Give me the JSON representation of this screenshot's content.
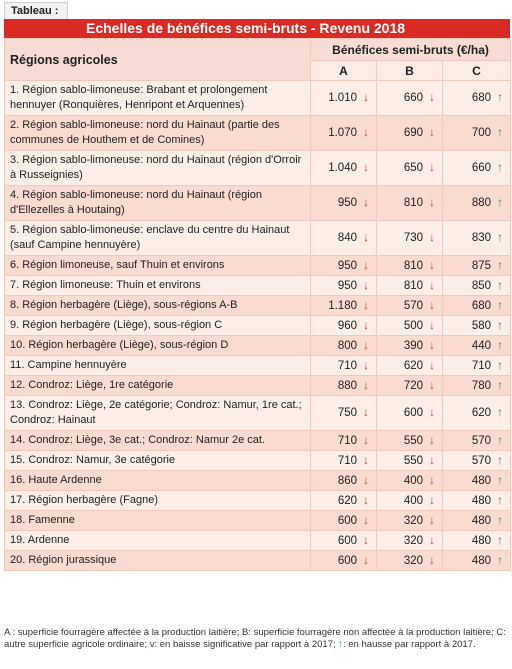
{
  "tab_label": "Tableau :",
  "title": "Echelles de bénéfices semi-bruts - Revenu 2018",
  "header": {
    "regions": "Régions agricoles",
    "group": "Bénéfices semi-bruts (€/ha)",
    "cols": [
      "A",
      "B",
      "C"
    ]
  },
  "rows": [
    {
      "region": "1. Région sablo-limoneuse: Brabant et prolongement hennuyer (Ronquières, Henripont et Arquennes)",
      "a": "1.010",
      "a_dir": "down",
      "b": "660",
      "b_dir": "down",
      "c": "680",
      "c_dir": "up"
    },
    {
      "region": "2. Région sablo-limoneuse: nord du Hainaut (partie des communes de Houthem et de Comines)",
      "a": "1.070",
      "a_dir": "down",
      "b": "690",
      "b_dir": "down",
      "c": "700",
      "c_dir": "up"
    },
    {
      "region": "3. Région sablo-limoneuse: nord du Hainaut (région d'Orroir à Russeignies)",
      "a": "1.040",
      "a_dir": "down",
      "b": "650",
      "b_dir": "down",
      "c": "660",
      "c_dir": "up"
    },
    {
      "region": "4. Région sablo-limoneuse: nord du Hainaut (région d'Ellezelles à Houtaing)",
      "a": "950",
      "a_dir": "down",
      "b": "810",
      "b_dir": "down",
      "c": "880",
      "c_dir": "up"
    },
    {
      "region": "5. Région sablo-limoneuse: enclave du centre du Hainaut (sauf Campine hennuyère)",
      "a": "840",
      "a_dir": "down",
      "b": "730",
      "b_dir": "down",
      "c": "830",
      "c_dir": "up"
    },
    {
      "region": "6. Région limoneuse, sauf Thuin et environs",
      "a": "950",
      "a_dir": "down",
      "b": "810",
      "b_dir": "down",
      "c": "875",
      "c_dir": "up"
    },
    {
      "region": "7. Région limoneuse: Thuin et environs",
      "a": "950",
      "a_dir": "down",
      "b": "810",
      "b_dir": "down",
      "c": "850",
      "c_dir": "up"
    },
    {
      "region": "8. Région herbagère (Liège), sous-régions A-B",
      "a": "1.180",
      "a_dir": "down",
      "b": "570",
      "b_dir": "down",
      "c": "680",
      "c_dir": "up"
    },
    {
      "region": "9. Région herbagère (Liège), sous-région C",
      "a": "960",
      "a_dir": "down",
      "b": "500",
      "b_dir": "down",
      "c": "580",
      "c_dir": "up"
    },
    {
      "region": "10. Région herbagère (Liège), sous-région D",
      "a": "800",
      "a_dir": "down",
      "b": "390",
      "b_dir": "down",
      "c": "440",
      "c_dir": "up"
    },
    {
      "region": "11. Campine hennuyère",
      "a": "710",
      "a_dir": "down",
      "b": "620",
      "b_dir": "down",
      "c": "710",
      "c_dir": "up"
    },
    {
      "region": "12. Condroz: Liège, 1re catégorie",
      "a": "880",
      "a_dir": "down",
      "b": "720",
      "b_dir": "down",
      "c": "780",
      "c_dir": "up"
    },
    {
      "region": "13. Condroz: Liège, 2e catégorie; Condroz: Namur, 1re cat.; Condroz: Hainaut",
      "a": "750",
      "a_dir": "down",
      "b": "600",
      "b_dir": "down",
      "c": "620",
      "c_dir": "up"
    },
    {
      "region": "14. Condroz: Liège, 3e cat.; Condroz: Namur 2e cat.",
      "a": "710",
      "a_dir": "down",
      "b": "550",
      "b_dir": "down",
      "c": "570",
      "c_dir": "up"
    },
    {
      "region": "15. Condroz: Namur, 3e catégorie",
      "a": "710",
      "a_dir": "down",
      "b": "550",
      "b_dir": "down",
      "c": "570",
      "c_dir": "up"
    },
    {
      "region": "16. Haute Ardenne",
      "a": "860",
      "a_dir": "down",
      "b": "400",
      "b_dir": "down",
      "c": "480",
      "c_dir": "up"
    },
    {
      "region": "17. Région herbagère (Fagne)",
      "a": "620",
      "a_dir": "down",
      "b": "400",
      "b_dir": "down",
      "c": "480",
      "c_dir": "up"
    },
    {
      "region": "18. Famenne",
      "a": "600",
      "a_dir": "down",
      "b": "320",
      "b_dir": "down",
      "c": "480",
      "c_dir": "up"
    },
    {
      "region": "19. Ardenne",
      "a": "600",
      "a_dir": "down",
      "b": "320",
      "b_dir": "down",
      "c": "480",
      "c_dir": "up"
    },
    {
      "region": "20. Région jurassique",
      "a": "600",
      "a_dir": "down",
      "b": "320",
      "b_dir": "down",
      "c": "480",
      "c_dir": "up"
    }
  ],
  "footnote": {
    "text": "A : superficie fourragère affectée à la production laitière; B: superficie fourragère non affectée à la production laitière; C: autre superficie agricole ordinaire; v: en baisse significative par rapport à 2017;",
    "up_symbol": "↑",
    "up_text": ": en hausse par rapport à 2017."
  },
  "icons": {
    "down": "arrow-down-icon",
    "up": "arrow-up-icon"
  },
  "colors": {
    "title_bg": "#d92b23",
    "down": "#e0362c",
    "up": "#1f9a57"
  }
}
